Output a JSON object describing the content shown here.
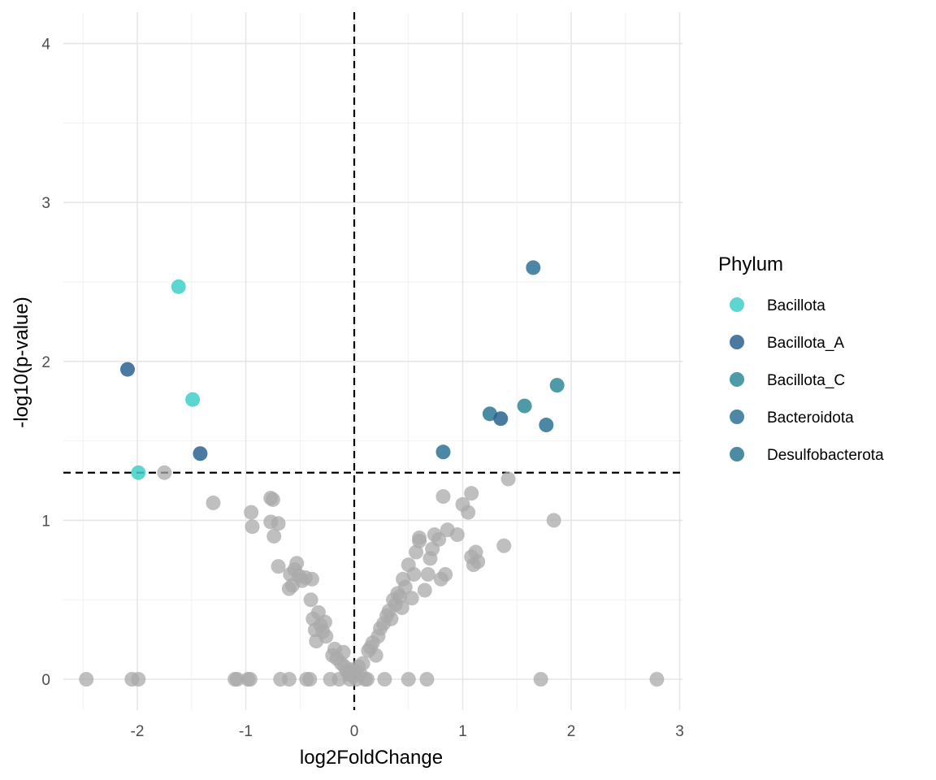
{
  "chart_data": {
    "type": "scatter",
    "title": "",
    "xlabel": "log2FoldChange",
    "ylabel": "-log10(p-value)",
    "xlim": [
      -2.5,
      3
    ],
    "ylim": [
      0,
      4
    ],
    "x_ticks": [
      -2,
      -1,
      0,
      1,
      2,
      3
    ],
    "y_ticks": [
      0,
      1,
      2,
      3,
      4
    ],
    "x_tick_labels": [
      "-2",
      "-1",
      "0",
      "1",
      "2",
      "3"
    ],
    "y_tick_labels": [
      "0",
      "1",
      "2",
      "3",
      "4"
    ],
    "grid": true,
    "thresholds": {
      "vertical_x": 0,
      "horizontal_y": 1.3
    },
    "legend": {
      "title": "Phylum",
      "placement": "right",
      "entries": [
        {
          "name": "Bacillota",
          "color": "#40D0C8"
        },
        {
          "name": "Bacillota_A",
          "color": "#2A6290"
        },
        {
          "name": "Bacillota_C",
          "color": "#2E8A96"
        },
        {
          "name": "Bacteroidota",
          "color": "#2D7396"
        },
        {
          "name": "Desulfobacterota",
          "color": "#2C7894"
        }
      ]
    },
    "significant": [
      {
        "x": -1.62,
        "y": 2.47,
        "phylum": "Bacillota"
      },
      {
        "x": -1.49,
        "y": 1.76,
        "phylum": "Bacillota"
      },
      {
        "x": -1.99,
        "y": 1.3,
        "phylum": "Bacillota"
      },
      {
        "x": -2.09,
        "y": 1.95,
        "phylum": "Bacillota_A"
      },
      {
        "x": -1.42,
        "y": 1.42,
        "phylum": "Bacillota_A"
      },
      {
        "x": 1.65,
        "y": 2.59,
        "phylum": "Bacteroidota"
      },
      {
        "x": 1.87,
        "y": 1.85,
        "phylum": "Bacillota_C"
      },
      {
        "x": 1.57,
        "y": 1.72,
        "phylum": "Bacillota_C"
      },
      {
        "x": 1.25,
        "y": 1.67,
        "phylum": "Desulfobacterota"
      },
      {
        "x": 1.35,
        "y": 1.64,
        "phylum": "Bacillota_A"
      },
      {
        "x": 1.77,
        "y": 1.6,
        "phylum": "Bacteroidota"
      },
      {
        "x": 0.82,
        "y": 1.43,
        "phylum": "Bacteroidota"
      }
    ],
    "nonsignificant_color": "#A9A9A9",
    "nonsignificant": [
      [
        -2.47,
        0
      ],
      [
        -2.05,
        0
      ],
      [
        -1.99,
        0
      ],
      [
        -1.75,
        1.3
      ],
      [
        -1.3,
        1.11
      ],
      [
        -1.1,
        0
      ],
      [
        -1.08,
        0
      ],
      [
        -0.98,
        0
      ],
      [
        -0.96,
        0
      ],
      [
        -0.95,
        1.05
      ],
      [
        -0.94,
        0.96
      ],
      [
        -0.77,
        1.14
      ],
      [
        -0.75,
        1.13
      ],
      [
        -0.77,
        0.99
      ],
      [
        -0.74,
        0.9
      ],
      [
        -0.7,
        0.98
      ],
      [
        -0.7,
        0.71
      ],
      [
        -0.68,
        0
      ],
      [
        -0.6,
        0
      ],
      [
        -0.6,
        0.57
      ],
      [
        -0.59,
        0.66
      ],
      [
        -0.57,
        0.59
      ],
      [
        -0.55,
        0.69
      ],
      [
        -0.53,
        0.73
      ],
      [
        -0.51,
        0.65
      ],
      [
        -0.48,
        0.62
      ],
      [
        -0.45,
        0.64
      ],
      [
        -0.44,
        0
      ],
      [
        -0.41,
        0
      ],
      [
        -0.39,
        0.63
      ],
      [
        -0.4,
        0.5
      ],
      [
        -0.38,
        0.38
      ],
      [
        -0.36,
        0.31
      ],
      [
        -0.35,
        0.24
      ],
      [
        -0.33,
        0.42
      ],
      [
        -0.31,
        0.34
      ],
      [
        -0.29,
        0.3
      ],
      [
        -0.27,
        0.36
      ],
      [
        -0.26,
        0.27
      ],
      [
        -0.22,
        0
      ],
      [
        -0.2,
        0.15
      ],
      [
        -0.18,
        0.19
      ],
      [
        -0.16,
        0.13
      ],
      [
        -0.14,
        0
      ],
      [
        -0.12,
        0.1
      ],
      [
        -0.1,
        0.17
      ],
      [
        -0.09,
        0.08
      ],
      [
        -0.07,
        0.05
      ],
      [
        -0.05,
        0.03
      ],
      [
        -0.04,
        0
      ],
      [
        -0.03,
        0.06
      ],
      [
        -0.01,
        0.02
      ],
      [
        0.01,
        0.05
      ],
      [
        0.02,
        0
      ],
      [
        0.04,
        0.08
      ],
      [
        0.06,
        0.03
      ],
      [
        0.08,
        0.1
      ],
      [
        0.1,
        0
      ],
      [
        0.12,
        0
      ],
      [
        0.13,
        0.18
      ],
      [
        0.15,
        0.2
      ],
      [
        0.17,
        0.23
      ],
      [
        0.2,
        0.15
      ],
      [
        0.22,
        0.27
      ],
      [
        0.24,
        0.32
      ],
      [
        0.27,
        0.35
      ],
      [
        0.28,
        0
      ],
      [
        0.3,
        0.4
      ],
      [
        0.32,
        0.43
      ],
      [
        0.34,
        0.38
      ],
      [
        0.36,
        0.5
      ],
      [
        0.38,
        0.47
      ],
      [
        0.4,
        0.54
      ],
      [
        0.42,
        0.52
      ],
      [
        0.44,
        0.45
      ],
      [
        0.45,
        0.63
      ],
      [
        0.47,
        0.58
      ],
      [
        0.5,
        0.72
      ],
      [
        0.5,
        0
      ],
      [
        0.53,
        0.51
      ],
      [
        0.55,
        0.66
      ],
      [
        0.57,
        0.8
      ],
      [
        0.6,
        0.87
      ],
      [
        0.6,
        0.89
      ],
      [
        0.65,
        0.56
      ],
      [
        0.67,
        0
      ],
      [
        0.68,
        0.66
      ],
      [
        0.7,
        0.76
      ],
      [
        0.72,
        0.82
      ],
      [
        0.74,
        0.91
      ],
      [
        0.78,
        0.88
      ],
      [
        0.8,
        0.63
      ],
      [
        0.82,
        1.15
      ],
      [
        0.84,
        0.66
      ],
      [
        0.86,
        0.94
      ],
      [
        0.95,
        0.91
      ],
      [
        1.0,
        1.1
      ],
      [
        1.05,
        1.05
      ],
      [
        1.08,
        1.17
      ],
      [
        1.08,
        0.77
      ],
      [
        1.1,
        0.72
      ],
      [
        1.12,
        0.8
      ],
      [
        1.14,
        0.74
      ],
      [
        1.38,
        0.84
      ],
      [
        1.42,
        1.26
      ],
      [
        1.72,
        0
      ],
      [
        1.84,
        1.0
      ],
      [
        2.79,
        0
      ]
    ]
  }
}
